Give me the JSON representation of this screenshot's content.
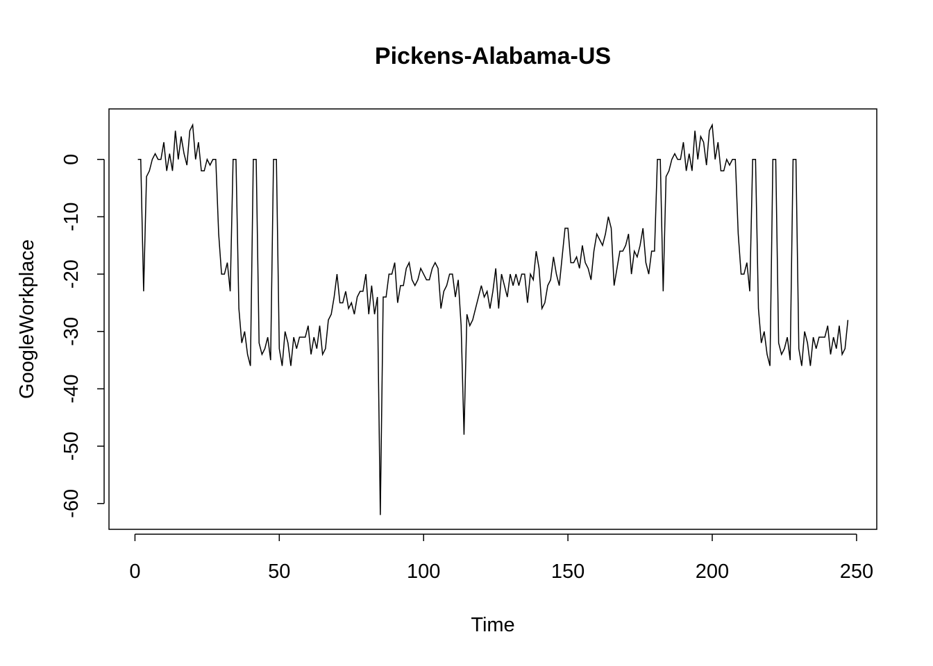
{
  "chart_data": {
    "type": "line",
    "title": "Pickens-Alabama-US",
    "xlabel": "Time",
    "ylabel": "GoogleWorkplace",
    "xlim": [
      -9,
      257
    ],
    "ylim": [
      -64.5,
      8.8
    ],
    "xticks": [
      0,
      50,
      100,
      150,
      200,
      250
    ],
    "yticks": [
      0,
      -10,
      -20,
      -30,
      -40,
      -50,
      -60
    ],
    "grid": false,
    "series": [
      {
        "values": [
          0,
          0,
          -23,
          -3,
          -2,
          0,
          1,
          0,
          0,
          3,
          -2,
          1,
          -2,
          5,
          0,
          4,
          1,
          -1,
          5,
          6,
          0,
          3,
          -2,
          -2,
          0,
          -1,
          0,
          0,
          -13,
          -20,
          -20,
          -18,
          -23,
          0,
          0,
          -26,
          -32,
          -30,
          -34,
          -36,
          0,
          0,
          -32,
          -34,
          -33,
          -31,
          -35,
          0,
          0,
          -33,
          -36,
          -30,
          -32,
          -36,
          -31,
          -33,
          -31,
          -31,
          -31,
          -29,
          -34,
          -31,
          -33,
          -29,
          -34,
          -33,
          -28,
          -27,
          -24,
          -20,
          -25,
          -25,
          -23,
          -26,
          -25,
          -27,
          -24,
          -23,
          -23,
          -20,
          -27,
          -22,
          -27,
          -24,
          -62,
          -24,
          -24,
          -20,
          -20,
          -18,
          -25,
          -22,
          -22,
          -19,
          -18,
          -21,
          -22,
          -21,
          -19,
          -20,
          -21,
          -21,
          -19,
          -18,
          -19,
          -26,
          -23,
          -22,
          -20,
          -20,
          -24,
          -21,
          -29,
          -48,
          -27,
          -29,
          -28,
          -26,
          -24,
          -22,
          -24,
          -23,
          -26,
          -23,
          -19,
          -26,
          -20,
          -22,
          -24,
          -20,
          -22,
          -20,
          -22,
          -20,
          -20,
          -25,
          -20,
          -21,
          -16,
          -19,
          -26,
          -25,
          -22,
          -21,
          -17,
          -20,
          -22,
          -17,
          -12,
          -12,
          -18,
          -18,
          -17,
          -19,
          -15,
          -18,
          -19,
          -21,
          -16,
          -13,
          -14,
          -15,
          -13,
          -10,
          -12,
          -22,
          -19,
          -16,
          -16,
          -15,
          -13,
          -20,
          -16,
          -17,
          -15,
          -12,
          -18,
          -20,
          -16,
          -16,
          0,
          0,
          -23,
          -3,
          -2,
          0,
          1,
          0,
          0,
          3,
          -2,
          1,
          -2,
          5,
          0,
          4,
          3,
          -1,
          5,
          6,
          0,
          3,
          -2,
          -2,
          0,
          -1,
          0,
          0,
          -13,
          -20,
          -20,
          -18,
          -23,
          0,
          0,
          -26,
          -32,
          -30,
          -34,
          -36,
          0,
          0,
          -32,
          -34,
          -33,
          -31,
          -35,
          0,
          0,
          -33,
          -36,
          -30,
          -32,
          -36,
          -31,
          -33,
          -31,
          -31,
          -31,
          -29,
          -34,
          -31,
          -33,
          -29,
          -34,
          -33,
          -28
        ]
      }
    ]
  }
}
